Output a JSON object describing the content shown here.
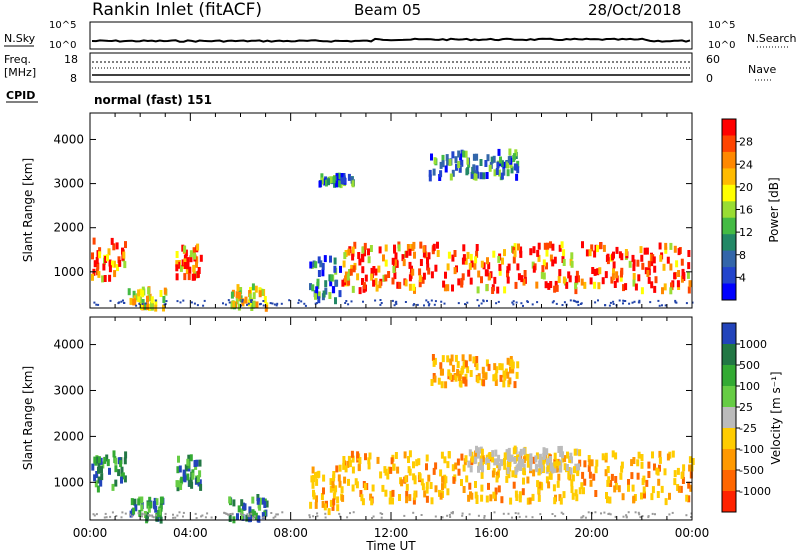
{
  "header": {
    "station": "Rankin Inlet (fitACF)",
    "beam": "Beam 05",
    "date": "28/Oct/2018"
  },
  "noise_panel": {
    "left_label": "N.Sky",
    "right_label": "N.Search",
    "left_ticks": [
      "10^5",
      "10^0"
    ],
    "right_ticks": [
      "10^5",
      "10^0"
    ]
  },
  "freq_panel": {
    "left_label_1": "Freq.",
    "left_label_2": "[MHz]",
    "left_ticks": [
      "18",
      "8"
    ],
    "right_label": "Nave",
    "right_ticks": [
      "60",
      "0"
    ]
  },
  "cpid": {
    "label": "CPID",
    "value": "normal (fast) 151"
  },
  "chart_data": [
    {
      "type": "heatmap",
      "parameter": "Power",
      "ylabel": "Slant Range [km]",
      "xlabel": "",
      "ylim": [
        180,
        4600
      ],
      "yticks": [
        "1000",
        "2000",
        "3000",
        "4000"
      ],
      "colorbar_label": "Power [dB]",
      "colorbar_ticks": [
        "28",
        "24",
        "20",
        "16",
        "12",
        "8",
        "4"
      ],
      "colorbar_colors": [
        "#ff0000",
        "#ff4400",
        "#ff8800",
        "#ffbb00",
        "#ffff00",
        "#99dd33",
        "#44bb44",
        "#228866",
        "#3366aa",
        "#2244cc",
        "#0000ff"
      ],
      "echo_regions": [
        {
          "t0": 0.0,
          "t1": 1.4,
          "r0": 900,
          "r1": 1800,
          "level": "high"
        },
        {
          "t0": 1.5,
          "t1": 3.0,
          "r0": 250,
          "r1": 700,
          "level": "mid"
        },
        {
          "t0": 3.4,
          "t1": 4.4,
          "r0": 950,
          "r1": 1650,
          "level": "high"
        },
        {
          "t0": 5.5,
          "t1": 7.0,
          "r0": 250,
          "r1": 750,
          "level": "mid"
        },
        {
          "t0": 8.7,
          "t1": 10.0,
          "r0": 400,
          "r1": 1400,
          "level": "low"
        },
        {
          "t0": 10.0,
          "t1": 24.0,
          "r0": 650,
          "r1": 1700,
          "level": "high"
        },
        {
          "t0": 13.5,
          "t1": 17.0,
          "r0": 3200,
          "r1": 3800,
          "level": "low"
        },
        {
          "t0": 9.0,
          "t1": 10.5,
          "r0": 3050,
          "r1": 3250,
          "level": "low"
        }
      ]
    },
    {
      "type": "heatmap",
      "parameter": "Velocity",
      "ylabel": "Slant Range [km]",
      "xlabel": "Time UT",
      "ylim": [
        180,
        4600
      ],
      "yticks": [
        "1000",
        "2000",
        "3000",
        "4000"
      ],
      "xticks": [
        "00:00",
        "04:00",
        "08:00",
        "12:00",
        "16:00",
        "20:00",
        "00:00"
      ],
      "colorbar_label": "Velocity [m s⁻¹]",
      "colorbar_ticks": [
        "1000",
        "500",
        "100",
        "25",
        "-25",
        "-100",
        "-500",
        "-1000"
      ],
      "colorbar_colors": [
        "#2244bb",
        "#227744",
        "#33aa33",
        "#66cc44",
        "#bbbbbb",
        "#ffcc00",
        "#ff9900",
        "#ff6600",
        "#ff2200"
      ],
      "echo_regions": [
        {
          "t0": 0.0,
          "t1": 1.4,
          "r0": 900,
          "r1": 1800,
          "level": "pos"
        },
        {
          "t0": 1.5,
          "t1": 3.0,
          "r0": 250,
          "r1": 700,
          "level": "pos"
        },
        {
          "t0": 3.4,
          "t1": 4.4,
          "r0": 950,
          "r1": 1650,
          "level": "pos"
        },
        {
          "t0": 5.5,
          "t1": 7.0,
          "r0": 250,
          "r1": 750,
          "level": "pos"
        },
        {
          "t0": 8.7,
          "t1": 10.0,
          "r0": 400,
          "r1": 1400,
          "level": "neg"
        },
        {
          "t0": 10.0,
          "t1": 24.0,
          "r0": 650,
          "r1": 1700,
          "level": "neg"
        },
        {
          "t0": 15.0,
          "t1": 19.5,
          "r0": 1300,
          "r1": 1800,
          "level": "zero"
        },
        {
          "t0": 13.5,
          "t1": 17.0,
          "r0": 3200,
          "r1": 3800,
          "level": "neg"
        }
      ]
    }
  ]
}
